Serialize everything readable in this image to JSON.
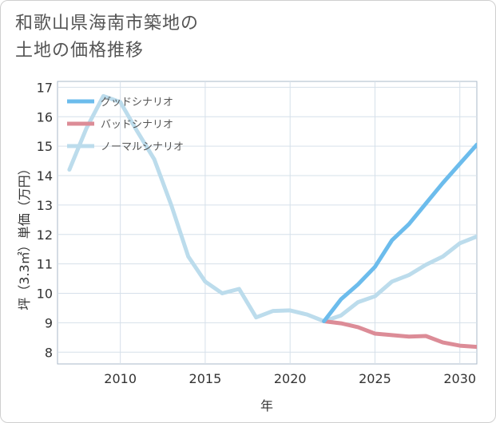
{
  "title_lines": [
    "和歌山県海南市築地の",
    "土地の価格推移"
  ],
  "chart_data": {
    "type": "line",
    "xlabel": "年",
    "ylabel": "坪（3.3㎡）単価（万円）",
    "xlim": [
      2006.3,
      2031
    ],
    "ylim": [
      7.6,
      17.2
    ],
    "xticks": [
      2010,
      2015,
      2020,
      2025,
      2030
    ],
    "yticks": [
      8,
      9,
      10,
      11,
      12,
      13,
      14,
      15,
      16,
      17
    ],
    "grid": true,
    "legend_position": "top-left",
    "series": [
      {
        "name": "グッドシナリオ",
        "color": "#6cbcec",
        "x": [
          2022,
          2023,
          2024,
          2025,
          2026,
          2027,
          2028,
          2029,
          2030,
          2031
        ],
        "y": [
          9.05,
          9.8,
          10.3,
          10.9,
          11.8,
          12.35,
          13.05,
          13.75,
          14.4,
          15.05
        ]
      },
      {
        "name": "バッドシナリオ",
        "color": "#dc8c97",
        "x": [
          2022,
          2023,
          2024,
          2025,
          2026,
          2027,
          2028,
          2029,
          2030,
          2031
        ],
        "y": [
          9.05,
          8.98,
          8.85,
          8.63,
          8.58,
          8.53,
          8.55,
          8.33,
          8.22,
          8.18
        ]
      },
      {
        "name": "ノーマルシナリオ",
        "color": "#bcdcec",
        "x": [
          2007,
          2008,
          2009,
          2010,
          2011,
          2012,
          2013,
          2014,
          2015,
          2016,
          2017,
          2018,
          2019,
          2020,
          2021,
          2022,
          2023,
          2024,
          2025,
          2026,
          2027,
          2028,
          2029,
          2030,
          2031
        ],
        "y": [
          14.2,
          15.6,
          16.7,
          16.5,
          15.5,
          14.55,
          13.0,
          11.25,
          10.4,
          10.0,
          10.15,
          9.18,
          9.4,
          9.42,
          9.28,
          9.05,
          9.25,
          9.7,
          9.9,
          10.4,
          10.62,
          10.97,
          11.25,
          11.7,
          11.93
        ]
      }
    ]
  }
}
